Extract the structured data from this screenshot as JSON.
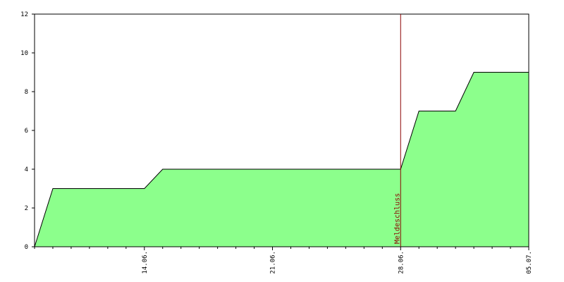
{
  "chart_data": {
    "type": "area",
    "categories": [
      null,
      null,
      null,
      null,
      null,
      null,
      "14.06.",
      null,
      null,
      null,
      null,
      null,
      null,
      "21.06.",
      null,
      null,
      null,
      null,
      null,
      null,
      "28.06.",
      null,
      null,
      null,
      null,
      null,
      null,
      "05.07."
    ],
    "values": [
      0,
      3,
      3,
      3,
      3,
      3,
      3,
      4,
      4,
      4,
      4,
      4,
      4,
      4,
      4,
      4,
      4,
      4,
      4,
      4,
      4,
      7,
      7,
      7,
      9,
      9,
      9,
      9
    ],
    "color": "#8cff8c",
    "ylim": [
      0,
      12
    ],
    "yticks": [
      0,
      2,
      4,
      6,
      8,
      10,
      12
    ],
    "annotation": {
      "text": "Meldeschluss",
      "at": "28.06.",
      "color": "#8b0000"
    }
  }
}
